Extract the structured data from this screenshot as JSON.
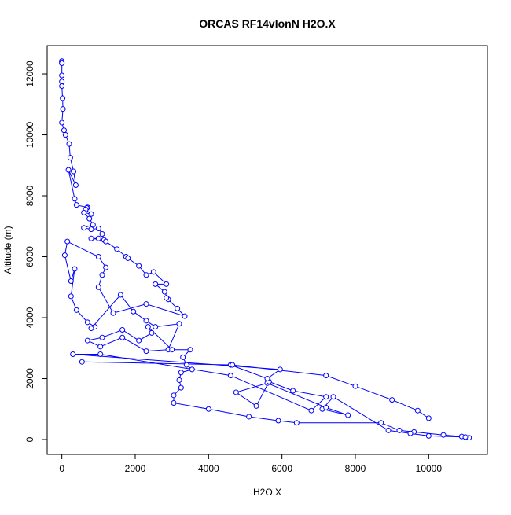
{
  "chart_data": {
    "type": "line",
    "title": "ORCAS RF14vlonN H2O.X",
    "x_label": "H2O.X",
    "y_label": "Altitude (m)",
    "color": "#0000ff",
    "x": [
      0,
      0,
      0,
      0,
      0,
      0,
      20,
      30,
      0,
      60,
      100,
      200,
      230,
      320,
      380,
      180,
      350,
      400,
      700,
      680,
      650,
      800,
      600,
      750,
      850,
      600,
      800,
      1000,
      1100,
      1150,
      800,
      1000,
      1200,
      1500,
      1750,
      1800,
      2100,
      2300,
      2500,
      2850,
      2550,
      2800,
      2900,
      2850,
      3150,
      3350,
      2300,
      1400,
      1000,
      1100,
      1200,
      1000,
      150,
      80,
      250,
      350,
      250,
      400,
      700,
      900,
      800,
      1600,
      1950,
      2300,
      2550,
      3200,
      2900,
      2300,
      1650,
      1050,
      700,
      1100,
      1650,
      2100,
      2450,
      2350,
      3000,
      3500,
      3300,
      3400,
      3550,
      3250,
      3200,
      3250,
      3050,
      3050,
      4000,
      5100,
      5900,
      6400,
      8700,
      9200,
      9600,
      10400,
      10900,
      11100,
      11000,
      10000,
      9500,
      8900,
      7400,
      7100,
      7800,
      7200,
      5600,
      4750,
      5300,
      5650,
      6300,
      7200,
      6800,
      4600,
      1050,
      300,
      5950,
      5600,
      4600,
      550,
      4650,
      7200,
      8000,
      9000,
      9700,
      10000
    ],
    "y": [
      12420,
      12380,
      12350,
      11950,
      11750,
      11600,
      11200,
      10850,
      10400,
      10150,
      10000,
      9700,
      9250,
      8800,
      8350,
      8850,
      7900,
      7700,
      7620,
      7600,
      7550,
      7400,
      7450,
      7250,
      7050,
      6950,
      6900,
      6930,
      6750,
      6550,
      6600,
      6600,
      6500,
      6250,
      6000,
      5950,
      5700,
      5400,
      5500,
      5100,
      5100,
      4850,
      4600,
      4650,
      4300,
      4050,
      4450,
      4150,
      5000,
      5400,
      5650,
      6000,
      6500,
      6050,
      5200,
      5600,
      4700,
      4250,
      3850,
      3700,
      3650,
      4750,
      4200,
      3900,
      3700,
      3800,
      2950,
      2900,
      3350,
      3050,
      3250,
      3350,
      3600,
      3250,
      3500,
      3700,
      2950,
      2950,
      2700,
      2450,
      2300,
      2200,
      1950,
      1700,
      1450,
      1200,
      1000,
      750,
      620,
      550,
      550,
      300,
      250,
      150,
      100,
      60,
      80,
      120,
      200,
      300,
      1400,
      1000,
      800,
      1050,
      1850,
      1550,
      1100,
      1900,
      1600,
      1400,
      950,
      2100,
      2800,
      2800,
      2300,
      2000,
      2450,
      2550,
      2450,
      2100,
      1750,
      1300,
      950,
      700
    ],
    "xlim": [
      -400,
      11600
    ],
    "ylim": [
      -490,
      12930
    ],
    "xticks": [
      0,
      2000,
      4000,
      6000,
      8000,
      10000
    ],
    "yticks": [
      0,
      2000,
      4000,
      6000,
      8000,
      10000,
      12000
    ]
  }
}
